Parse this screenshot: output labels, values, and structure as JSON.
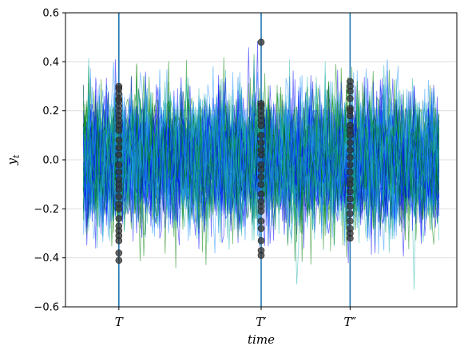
{
  "chart_data": {
    "type": "line",
    "xlabel": "time",
    "ylabel": "y",
    "ylabel_subscript": "t",
    "ylim": [
      -0.6,
      0.6
    ],
    "yticks": [
      -0.6,
      -0.4,
      -0.2,
      0.0,
      0.2,
      0.4,
      0.6
    ],
    "ytick_labels": [
      "−0.6",
      "−0.4",
      "−0.2",
      "0.0",
      "0.2",
      "0.4",
      "0.6"
    ],
    "xlim": [
      -10,
      210
    ],
    "xticks": [
      {
        "value": 20,
        "label": "T",
        "prime": ""
      },
      {
        "value": 100,
        "label": "T",
        "prime": "′"
      },
      {
        "value": 150,
        "label": "T",
        "prime": "″"
      }
    ],
    "vertical_lines": [
      20,
      100,
      150
    ],
    "horizontal_grid": true,
    "num_time_steps": 201,
    "num_paths": 60,
    "noise_std": 0.13,
    "series_colors": [
      "#0000ff",
      "#008000",
      "#20b2aa",
      "#1e90ff"
    ],
    "vline_color": "#1f77b4",
    "marker_color": "#333333",
    "markers": [
      {
        "x": 20,
        "y": [
          0.3,
          0.29,
          0.27,
          0.25,
          0.24,
          0.22,
          0.2,
          0.18,
          0.16,
          0.14,
          0.12,
          0.08,
          0.05,
          0.02,
          -0.02,
          -0.05,
          -0.08,
          -0.1,
          -0.12,
          -0.15,
          -0.18,
          -0.2,
          -0.24,
          -0.27,
          -0.29,
          -0.31,
          -0.33,
          -0.38,
          -0.41
        ]
      },
      {
        "x": 100,
        "y": [
          0.48,
          0.23,
          0.22,
          0.2,
          0.18,
          0.16,
          0.14,
          0.1,
          0.07,
          0.04,
          0.02,
          -0.02,
          -0.04,
          -0.07,
          -0.1,
          -0.14,
          -0.17,
          -0.19,
          -0.21,
          -0.25,
          -0.28,
          -0.33,
          -0.37,
          -0.39
        ]
      },
      {
        "x": 150,
        "y": [
          0.32,
          0.3,
          0.28,
          0.25,
          0.21,
          0.2,
          0.18,
          0.14,
          0.12,
          0.1,
          0.07,
          0.04,
          0.01,
          -0.02,
          -0.05,
          -0.08,
          -0.1,
          -0.13,
          -0.16,
          -0.19,
          -0.22,
          -0.25,
          -0.28,
          -0.3,
          -0.32
        ]
      }
    ]
  }
}
